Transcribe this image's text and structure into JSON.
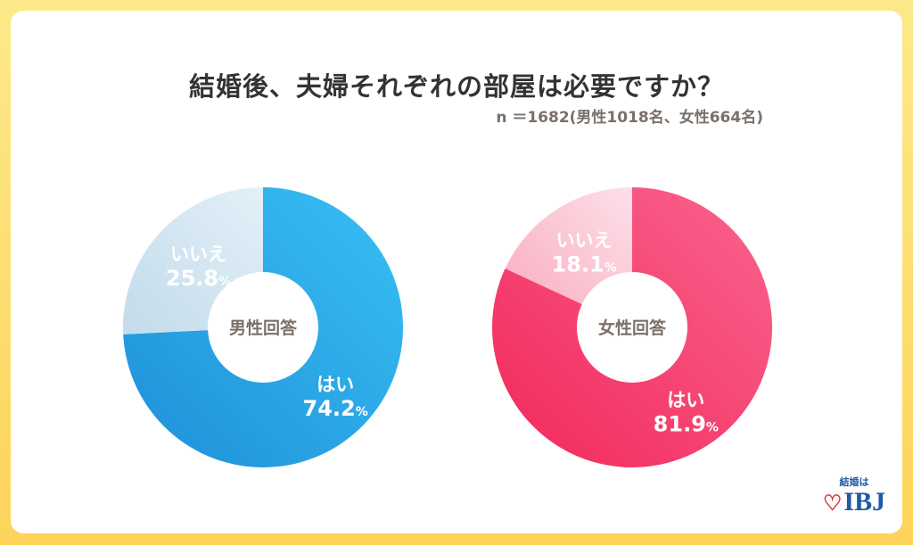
{
  "title": "結婚後、夫婦それぞれの部屋は必要ですか？",
  "subtitle": "n ＝1682(男性1018名、女性664名)",
  "logo": {
    "tagline": "結婚は",
    "brand": "IBJ"
  },
  "chart_data": [
    {
      "type": "pie",
      "title": "男性回答",
      "center_label": "男性回答",
      "slices": [
        {
          "label": "はい",
          "value": 74.2,
          "display": "74.2",
          "color": "#2ba6e8"
        },
        {
          "label": "いいえ",
          "value": 25.8,
          "display": "25.8",
          "color": "#cfe3f1"
        }
      ],
      "unit": "%"
    },
    {
      "type": "pie",
      "title": "女性回答",
      "center_label": "女性回答",
      "slices": [
        {
          "label": "はい",
          "value": 81.9,
          "display": "81.9",
          "color": "#f5416e"
        },
        {
          "label": "いいえ",
          "value": 18.1,
          "display": "18.1",
          "color": "#fbc3d2"
        }
      ],
      "unit": "%"
    }
  ]
}
